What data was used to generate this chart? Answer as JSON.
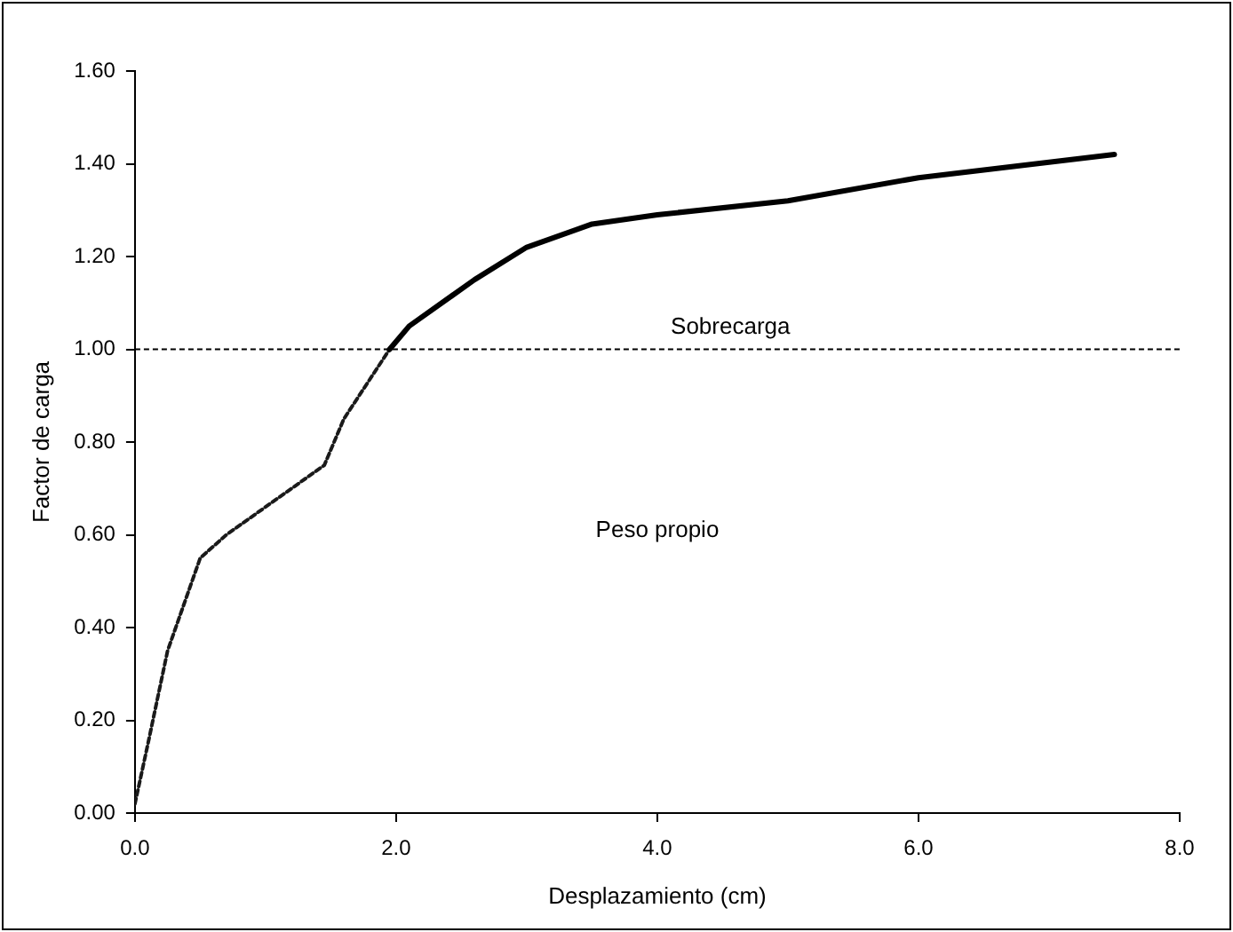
{
  "chart_data": {
    "type": "line",
    "xlabel": "Desplazamiento (cm)",
    "ylabel": "Factor de carga",
    "xlim": [
      0,
      8
    ],
    "xticks": [
      {
        "value": 0,
        "label": "0.0"
      },
      {
        "value": 2,
        "label": "2.0"
      },
      {
        "value": 4,
        "label": "4.0"
      },
      {
        "value": 6,
        "label": "6.0"
      },
      {
        "value": 8,
        "label": "8.0"
      }
    ],
    "ylim": [
      0,
      1.6
    ],
    "yticks": [
      {
        "value": 0,
        "label": "0.00"
      },
      {
        "value": 0.2,
        "label": "0.20"
      },
      {
        "value": 0.4,
        "label": "0.40"
      },
      {
        "value": 0.6,
        "label": "0.60"
      },
      {
        "value": 0.8,
        "label": "0.80"
      },
      {
        "value": 1,
        "label": "1.00"
      },
      {
        "value": 1.2,
        "label": "1.20"
      },
      {
        "value": 1.4,
        "label": "1.40"
      },
      {
        "value": 1.6,
        "label": "1.60"
      }
    ],
    "grid": false,
    "legend": false,
    "marker": "none",
    "series": [
      {
        "color": "#1a1a1a",
        "line_style": "dotted",
        "x": [
          0,
          0.1,
          0.25,
          0.5,
          0.7,
          1.2,
          1.45,
          1.6,
          1.95
        ],
        "values": [
          0.02,
          0.15,
          0.35,
          0.55,
          0.6,
          0.7,
          0.75,
          0.85,
          1.0
        ]
      },
      {
        "color": "#000000",
        "line_style": "solid",
        "x": [
          1.95,
          2.1,
          2.6,
          3.0,
          3.5,
          4.0,
          5.0,
          6.0,
          7.5
        ],
        "values": [
          1.0,
          1.05,
          1.15,
          1.22,
          1.27,
          1.29,
          1.32,
          1.37,
          1.42
        ]
      }
    ],
    "ref_lines": [
      {
        "axis": "y",
        "value": 1,
        "label": "Sobrecarga",
        "color": "#000000",
        "line_style": "dotted"
      }
    ],
    "annotations": [
      "Peso propio"
    ]
  }
}
